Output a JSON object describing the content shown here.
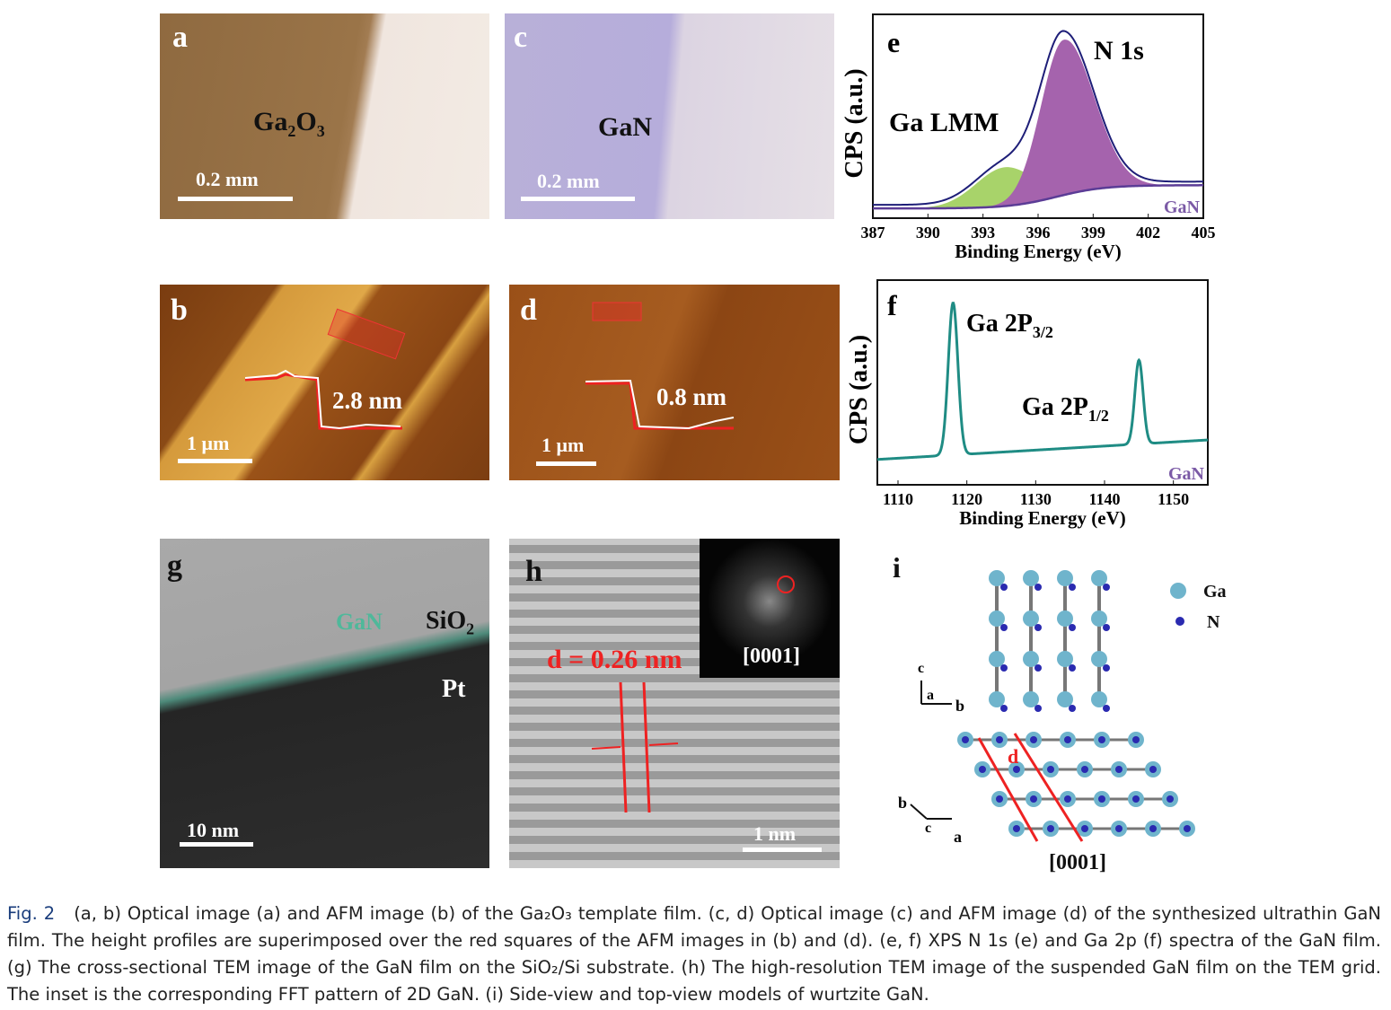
{
  "panels": {
    "a": {
      "label": "a",
      "material": "Ga2O3",
      "scale": "0.2 mm"
    },
    "b": {
      "label": "b",
      "step": "2.8 nm",
      "scale": "1 μm"
    },
    "c": {
      "label": "c",
      "material": "GaN",
      "scale": "0.2 mm"
    },
    "d": {
      "label": "d",
      "step": "0.8 nm",
      "scale": "1 μm"
    },
    "g": {
      "label": "g",
      "layers": [
        "GaN",
        "SiO2",
        "Pt"
      ],
      "scale": "10 nm"
    },
    "h": {
      "label": "h",
      "spacing": "d = 0.26 nm",
      "inset_label": "[0001]",
      "scale": "1 nm"
    },
    "i": {
      "label": "i",
      "legend": [
        "Ga",
        "N"
      ],
      "axes_side": [
        "c",
        "a",
        "b"
      ],
      "axes_top": [
        "b",
        "c",
        "a"
      ],
      "spacing_label": "d",
      "zone": "[0001]"
    }
  },
  "chart_data": [
    {
      "type": "line",
      "panel": "e",
      "title": "N 1s",
      "annotation": "Ga LMM",
      "sample": "GaN",
      "xlabel": "Binding Energy (eV)",
      "ylabel": "CPS (a.u.)",
      "xlim": [
        387,
        405
      ],
      "ylim": [
        0,
        1.05
      ],
      "xticks": [
        387,
        390,
        393,
        396,
        399,
        402,
        405
      ],
      "peaks": [
        {
          "name": "Ga LMM",
          "center": 394.2,
          "amplitude": 0.2,
          "sigma": 1.6,
          "color": "#a8d36a"
        },
        {
          "name": "N 1s",
          "center": 397.4,
          "amplitude": 0.8,
          "sigma": 1.25,
          "color": "#a563ad"
        }
      ],
      "background": {
        "low": 0.05,
        "high": 0.17,
        "center": 397
      },
      "envelope_color": "#1e1e78",
      "background_color": "#5b3c96"
    },
    {
      "type": "line",
      "panel": "f",
      "title": "",
      "sample": "GaN",
      "xlabel": "Binding Energy (eV)",
      "ylabel": "CPS (a.u.)",
      "xlim": [
        1107,
        1155
      ],
      "ylim": [
        0,
        1.05
      ],
      "xticks": [
        1110,
        1120,
        1130,
        1140,
        1150
      ],
      "peaks": [
        {
          "name": "Ga 2P3/2",
          "center": 1118,
          "amplitude": 0.78,
          "sigma": 0.7
        },
        {
          "name": "Ga 2P1/2",
          "center": 1145,
          "amplitude": 0.43,
          "sigma": 0.6
        }
      ],
      "background": {
        "low": 0.13,
        "high": 0.23
      },
      "color": "#1f8c84"
    }
  ],
  "caption": {
    "fig": "Fig. 2",
    "text": "(a, b) Optical image (a) and AFM image (b) of the Ga₂O₃ template film. (c, d) Optical image (c) and AFM image (d) of the synthesized ultrathin GaN film. The height profiles are superimposed over the red squares of the AFM images in (b) and (d). (e, f) XPS N 1s (e) and Ga 2p (f) spectra of the GaN film. (g) The cross-sectional TEM image of the GaN film on the SiO₂/Si substrate. (h) The high-resolution TEM image of the suspended GaN film on the TEM grid. The inset is the corresponding FFT pattern of 2D GaN. (i) Side-view and top-view models of wurtzite GaN."
  }
}
